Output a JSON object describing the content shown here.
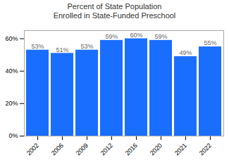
{
  "chart_data": {
    "type": "bar",
    "title": "Percent of State Population\nEnrolled in State-Funded Preschool",
    "categories": [
      "2002",
      "2006",
      "2009",
      "2012",
      "2016",
      "2020",
      "2021",
      "2022"
    ],
    "values": [
      53,
      51,
      53,
      59,
      60,
      59,
      49,
      55
    ],
    "value_labels": [
      "53%",
      "51%",
      "53%",
      "59%",
      "60%",
      "59%",
      "49%",
      "55%"
    ],
    "data_labels": true,
    "color": "#1a6eff",
    "ylim": [
      0,
      65
    ],
    "yticks": [
      {
        "value": 0,
        "label": "0%"
      },
      {
        "value": 20,
        "label": "20%"
      },
      {
        "value": 40,
        "label": "40%"
      },
      {
        "value": 60,
        "label": "60%"
      }
    ],
    "grid": false
  }
}
